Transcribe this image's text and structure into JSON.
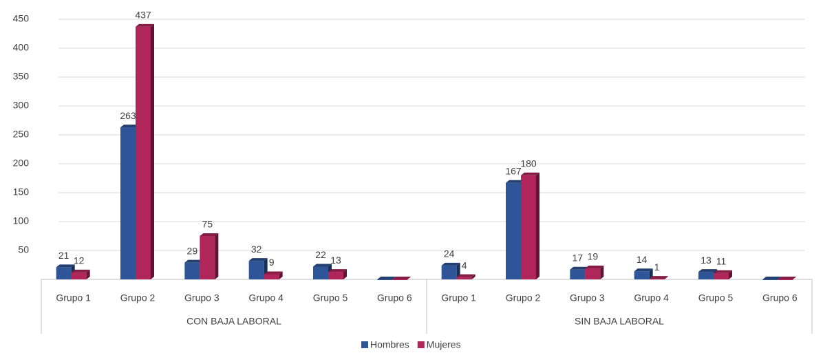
{
  "chart_data": {
    "type": "bar",
    "categories": [
      "Grupo 1",
      "Grupo 2",
      "Grupo 3",
      "Grupo 4",
      "Grupo 5",
      "Grupo 6",
      "Grupo 1",
      "Grupo 2",
      "Grupo 3",
      "Grupo 4",
      "Grupo 5",
      "Grupo 6"
    ],
    "category_groups": [
      "CON BAJA LABORAL",
      "SIN BAJA LABORAL"
    ],
    "series": [
      {
        "name": "Hombres",
        "color": "#2e5597",
        "values": [
          21,
          263,
          29,
          32,
          22,
          0,
          24,
          167,
          17,
          14,
          13,
          0
        ]
      },
      {
        "name": "Mujeres",
        "color": "#b0255a",
        "values": [
          12,
          437,
          75,
          9,
          13,
          0,
          4,
          180,
          19,
          1,
          11,
          0
        ]
      }
    ],
    "ylim": [
      0,
      450
    ],
    "yticks": [
      50,
      100,
      150,
      200,
      250,
      300,
      350,
      400,
      450
    ],
    "grid": true,
    "legend": "bottom"
  }
}
